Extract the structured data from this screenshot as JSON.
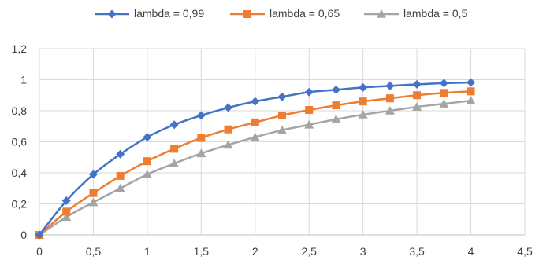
{
  "chart_data": {
    "type": "line",
    "x_ticks": [
      "0",
      "0,5",
      "1",
      "1,5",
      "2",
      "2,5",
      "3",
      "3,5",
      "4",
      "4,5"
    ],
    "y_ticks": [
      "0",
      "0,2",
      "0,4",
      "0,6",
      "0,8",
      "1",
      "1,2"
    ],
    "xlim": [
      0,
      4.5
    ],
    "ylim": [
      0,
      1.2
    ],
    "grid": "vertical and horizontal",
    "legend_position": "top",
    "x": [
      0,
      0.25,
      0.5,
      0.75,
      1,
      1.25,
      1.5,
      1.75,
      2,
      2.25,
      2.5,
      2.75,
      3,
      3.25,
      3.5,
      3.75,
      4
    ],
    "series": [
      {
        "name": "lambda = 0,99",
        "color": "#4472C4",
        "marker": "diamond",
        "values": [
          0,
          0.22,
          0.39,
          0.52,
          0.63,
          0.71,
          0.77,
          0.82,
          0.86,
          0.89,
          0.92,
          0.935,
          0.95,
          0.96,
          0.97,
          0.978,
          0.982
        ]
      },
      {
        "name": "lambda = 0,65",
        "color": "#ED7D31",
        "marker": "square",
        "values": [
          0,
          0.15,
          0.27,
          0.38,
          0.475,
          0.555,
          0.625,
          0.68,
          0.725,
          0.77,
          0.805,
          0.835,
          0.86,
          0.88,
          0.9,
          0.915,
          0.925
        ]
      },
      {
        "name": "lambda = 0,5",
        "color": "#A5A5A5",
        "marker": "triangle",
        "values": [
          0,
          0.115,
          0.21,
          0.3,
          0.39,
          0.46,
          0.525,
          0.58,
          0.63,
          0.675,
          0.71,
          0.745,
          0.775,
          0.8,
          0.825,
          0.845,
          0.865
        ]
      }
    ]
  }
}
